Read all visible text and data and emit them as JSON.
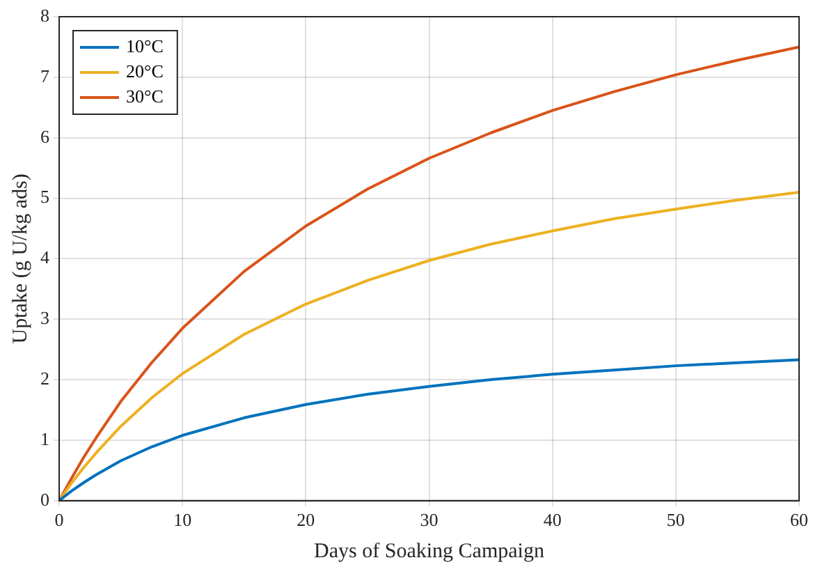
{
  "chart_data": {
    "type": "line",
    "xlabel": "Days of Soaking Campaign",
    "ylabel": "Uptake (g U/kg ads)",
    "x": [
      0,
      1,
      2,
      3,
      5,
      7.5,
      10,
      15,
      20,
      25,
      30,
      35,
      40,
      45,
      50,
      55,
      60
    ],
    "series": [
      {
        "name": "10°C",
        "color": "#0072bd",
        "values": [
          0,
          0.16,
          0.3,
          0.43,
          0.66,
          0.89,
          1.08,
          1.37,
          1.59,
          1.76,
          1.89,
          2.0,
          2.09,
          2.16,
          2.23,
          2.28,
          2.33
        ]
      },
      {
        "name": "20°C",
        "color": "#edb120",
        "values": [
          0,
          0.29,
          0.55,
          0.79,
          1.23,
          1.7,
          2.1,
          2.75,
          3.25,
          3.64,
          3.97,
          4.24,
          4.46,
          4.66,
          4.82,
          4.97,
          5.1
        ]
      },
      {
        "name": "30°C",
        "color": "#d95319",
        "values": [
          0,
          0.37,
          0.72,
          1.04,
          1.64,
          2.28,
          2.85,
          3.79,
          4.54,
          5.15,
          5.66,
          6.08,
          6.45,
          6.76,
          7.04,
          7.28,
          7.5
        ]
      }
    ],
    "xlim": [
      0,
      60
    ],
    "xticks": [
      0,
      10,
      20,
      30,
      40,
      50,
      60
    ],
    "ylim": [
      0,
      8
    ],
    "yticks": [
      0,
      1,
      2,
      3,
      4,
      5,
      6,
      7,
      8
    ],
    "grid": true,
    "legend": "top left",
    "marker": "none",
    "line_style": "solid"
  }
}
